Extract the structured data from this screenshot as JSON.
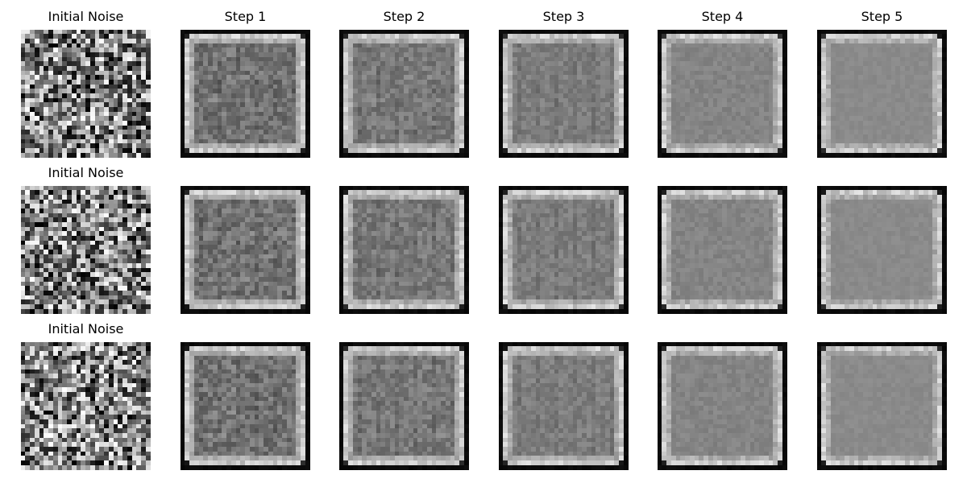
{
  "figure": {
    "rows": [
      {
        "panels": [
          {
            "title": "Initial Noise",
            "kind": "noise",
            "seed": 11
          },
          {
            "title": "Step 1",
            "kind": "step",
            "step": 1,
            "seed": 12
          },
          {
            "title": "Step 2",
            "kind": "step",
            "step": 2,
            "seed": 13
          },
          {
            "title": "Step 3",
            "kind": "step",
            "step": 3,
            "seed": 14
          },
          {
            "title": "Step 4",
            "kind": "step",
            "step": 4,
            "seed": 15
          },
          {
            "title": "Step 5",
            "kind": "step",
            "step": 5,
            "seed": 16
          }
        ]
      },
      {
        "panels": [
          {
            "title": "Initial Noise",
            "kind": "noise",
            "seed": 21
          },
          {
            "title": "",
            "kind": "step",
            "step": 1,
            "seed": 22
          },
          {
            "title": "",
            "kind": "step",
            "step": 2,
            "seed": 23
          },
          {
            "title": "",
            "kind": "step",
            "step": 3,
            "seed": 24
          },
          {
            "title": "",
            "kind": "step",
            "step": 4,
            "seed": 25
          },
          {
            "title": "",
            "kind": "step",
            "step": 5,
            "seed": 26
          }
        ]
      },
      {
        "panels": [
          {
            "title": "Initial Noise",
            "kind": "noise",
            "seed": 31
          },
          {
            "title": "",
            "kind": "step",
            "step": 1,
            "seed": 32
          },
          {
            "title": "",
            "kind": "step",
            "step": 2,
            "seed": 33
          },
          {
            "title": "",
            "kind": "step",
            "step": 3,
            "seed": 34
          },
          {
            "title": "",
            "kind": "step",
            "step": 4,
            "seed": 35
          },
          {
            "title": "",
            "kind": "step",
            "step": 5,
            "seed": 36
          }
        ]
      }
    ]
  }
}
